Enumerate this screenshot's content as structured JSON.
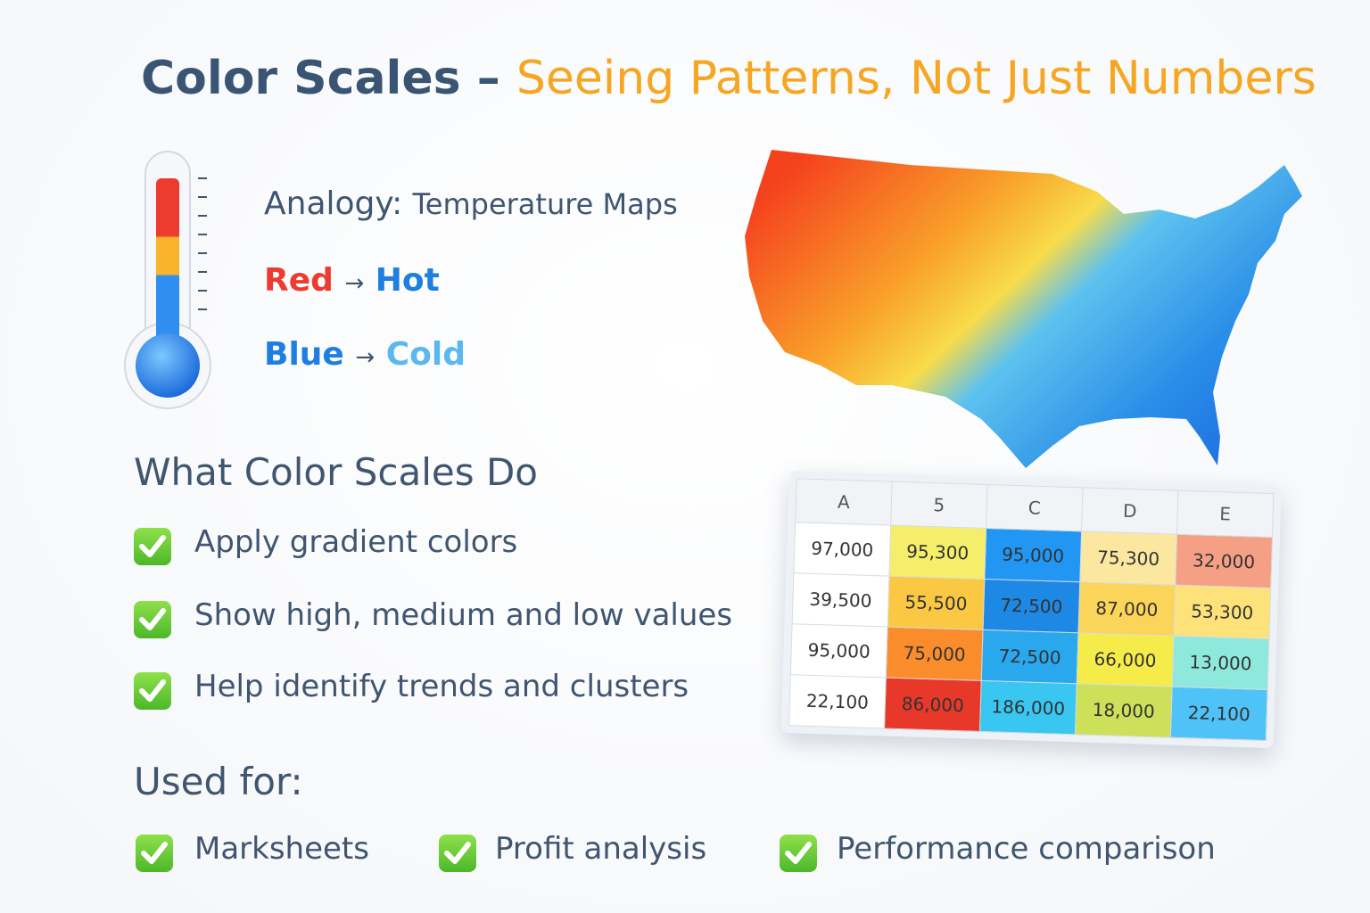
{
  "header": {
    "title_main": "Color Scales –",
    "title_accent": "Seeing Patterns, Not Just Numbers"
  },
  "analogy": {
    "label": "Analogy:",
    "text": "Temperature Maps",
    "hot": {
      "color_word": "Red",
      "arrow": "→",
      "meaning": "Hot"
    },
    "cold": {
      "color_word": "Blue",
      "arrow": "→",
      "meaning": "Cold"
    }
  },
  "what": {
    "heading": "What Color Scales Do",
    "items": [
      "Apply gradient colors",
      "Show high, medium and low values",
      "Help identify trends and clusters"
    ]
  },
  "used_for": {
    "heading": "Used for:",
    "items": [
      "Marksheets",
      "Profit analysis",
      "Performance comparison"
    ]
  },
  "table": {
    "headers": [
      "A",
      "5",
      "C",
      "D",
      "E"
    ],
    "rows": [
      [
        "97,000",
        "95,300",
        "95,000",
        "75,300",
        "32,000"
      ],
      [
        "39,500",
        "55,500",
        "72,500",
        "87,000",
        "53,300"
      ],
      [
        "95,000",
        "75,000",
        "72,500",
        "66,000",
        "13,000"
      ],
      [
        "22,100",
        "86,000",
        "186,000",
        "18,000",
        "22,100"
      ]
    ]
  }
}
